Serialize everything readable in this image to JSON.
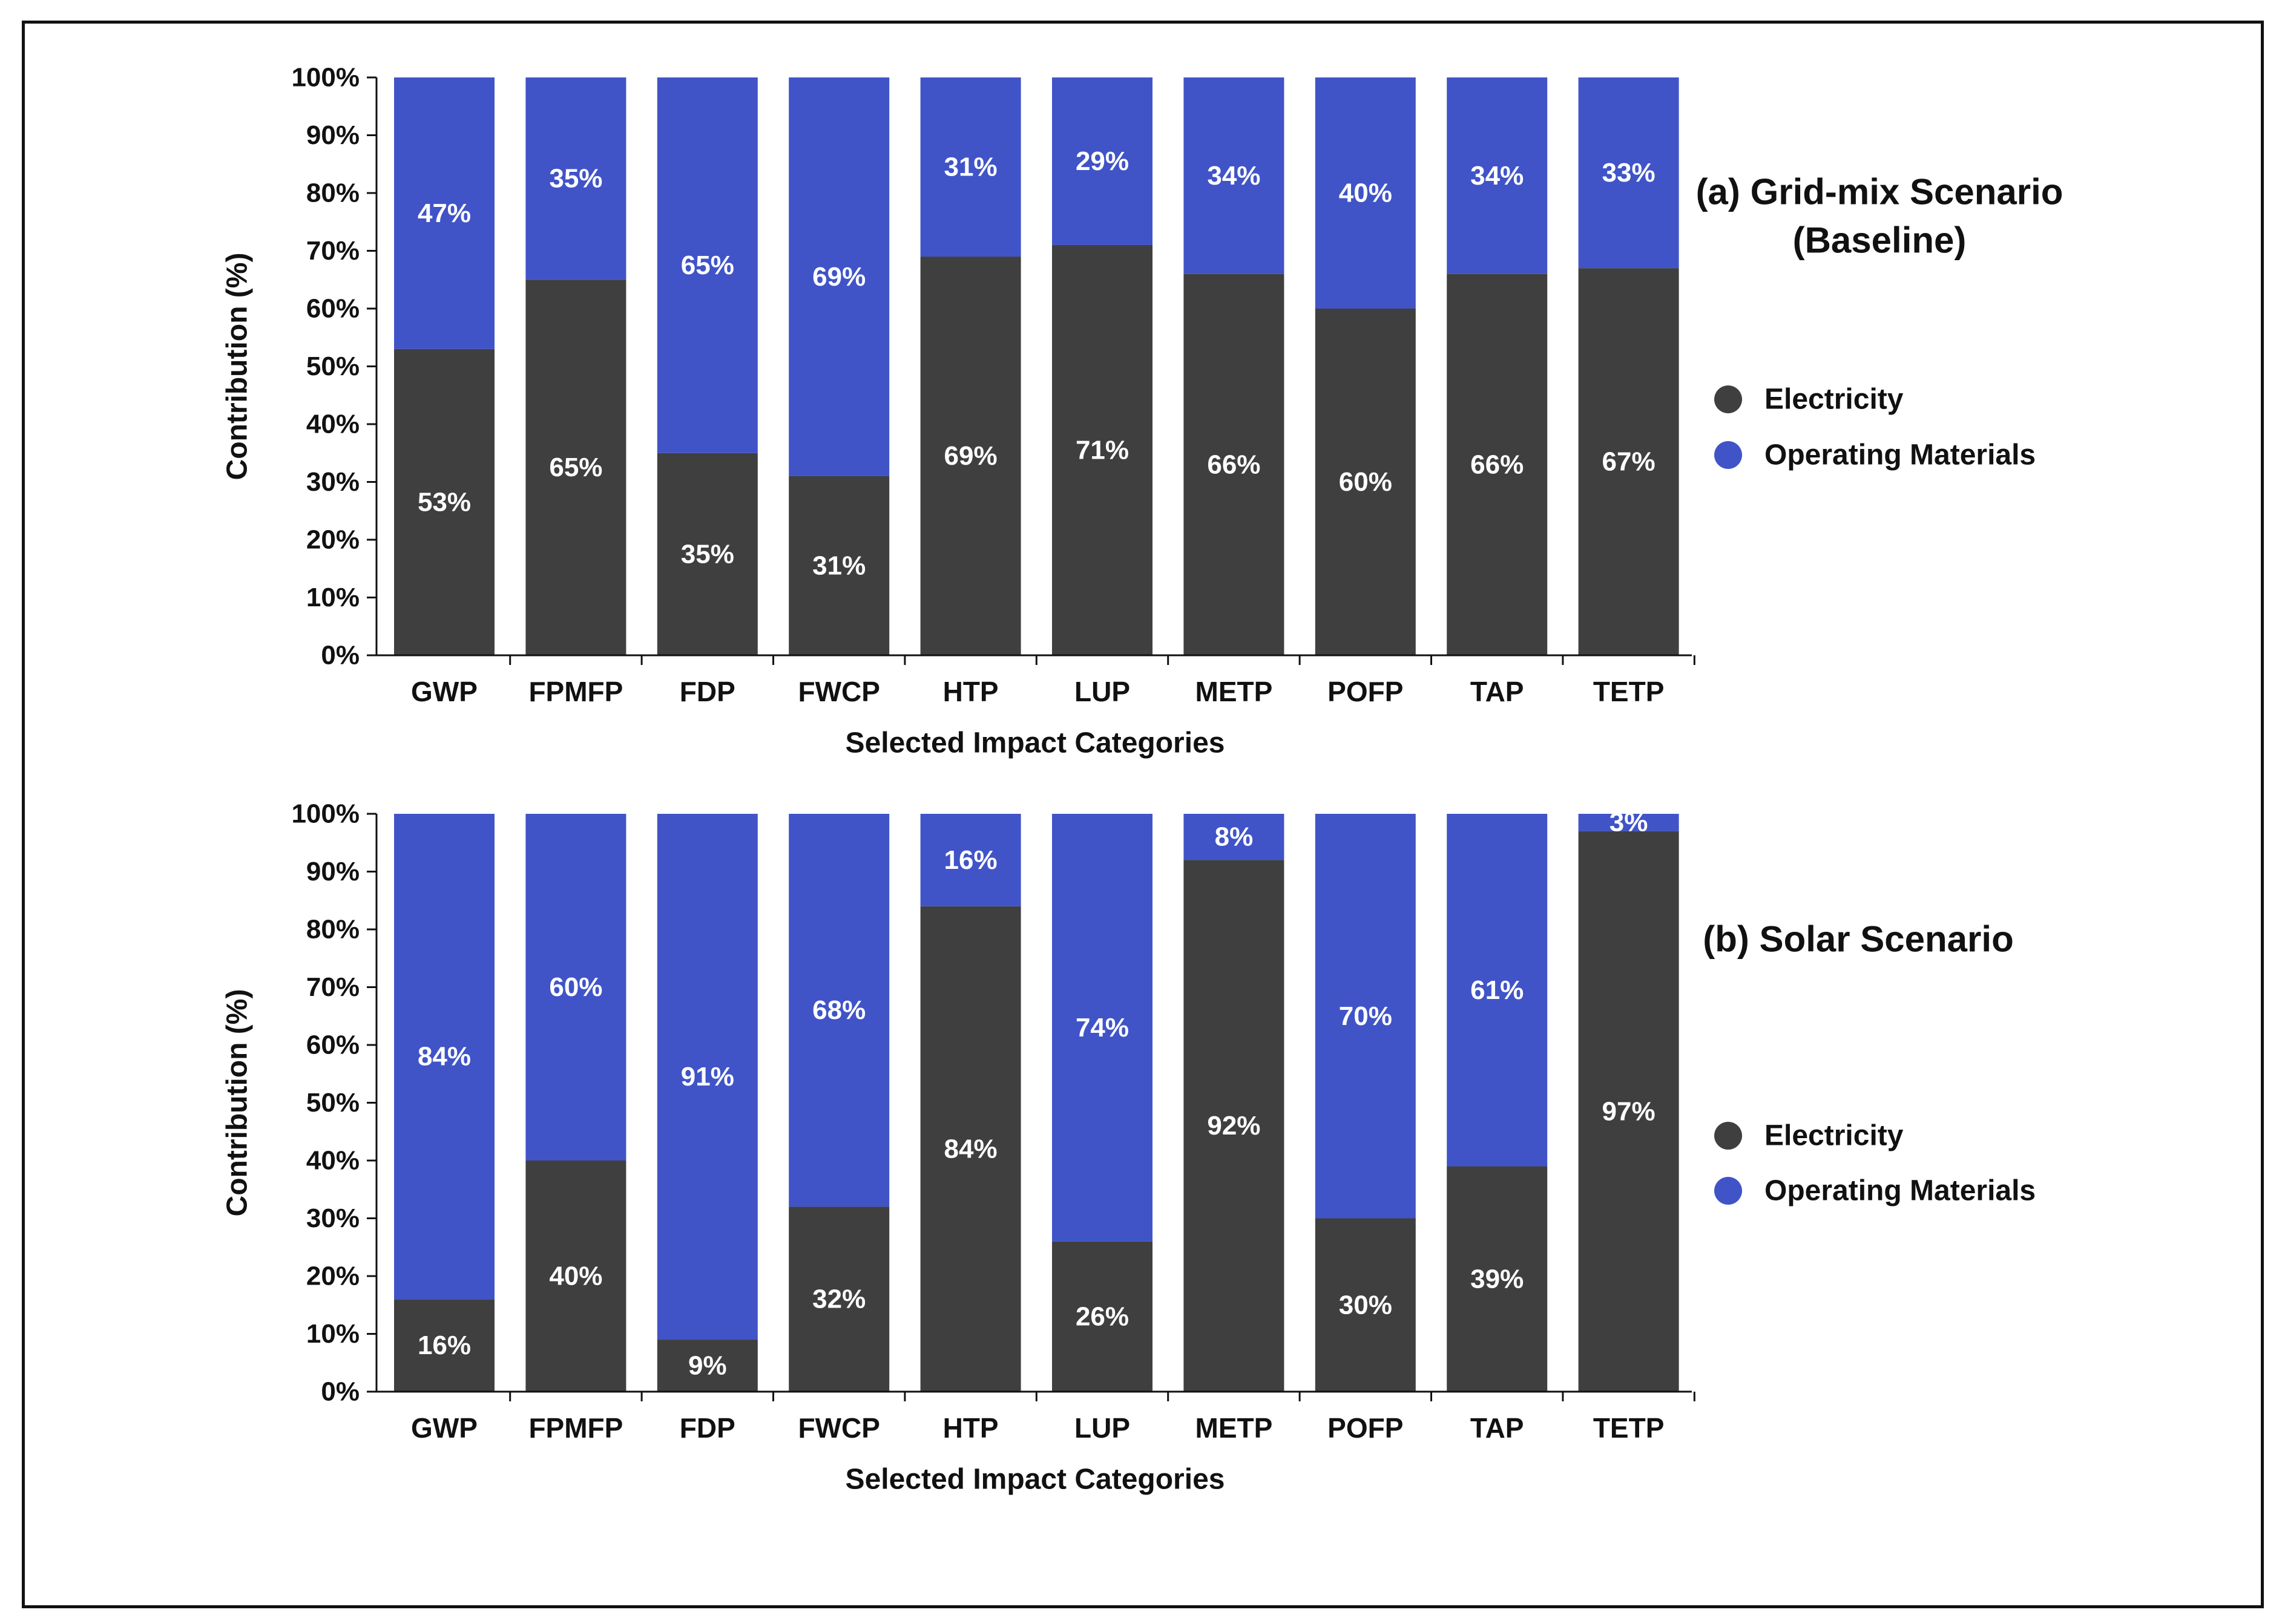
{
  "colors": {
    "electricity": "#3f3f3f",
    "operating_materials": "#4054c8",
    "axis": "#111111",
    "text": "#111111",
    "bar_label": "#ffffff"
  },
  "chart_data": [
    {
      "type": "bar",
      "stacked": true,
      "title": "(a) Grid-mix Scenario (Baseline)",
      "title_lines": [
        "(a) Grid-mix Scenario",
        "(Baseline)"
      ],
      "xlabel": "Selected Impact Categories",
      "ylabel": "Contribution (%)",
      "ylim": [
        0,
        100
      ],
      "yticks": [
        "0%",
        "10%",
        "20%",
        "30%",
        "40%",
        "50%",
        "60%",
        "70%",
        "80%",
        "90%",
        "100%"
      ],
      "categories": [
        "GWP",
        "FPMFP",
        "FDP",
        "FWCP",
        "HTP",
        "LUP",
        "METP",
        "POFP",
        "TAP",
        "TETP"
      ],
      "legend_position": "right",
      "series": [
        {
          "name": "Electricity",
          "values": [
            53,
            65,
            35,
            31,
            69,
            71,
            66,
            60,
            66,
            67
          ],
          "labels": [
            "53%",
            "65%",
            "35%",
            "31%",
            "69%",
            "71%",
            "66%",
            "60%",
            "66%",
            "67%"
          ]
        },
        {
          "name": "Operating Materials",
          "values": [
            47,
            35,
            65,
            69,
            31,
            29,
            34,
            40,
            34,
            33
          ],
          "labels": [
            "47%",
            "35%",
            "65%",
            "69%",
            "31%",
            "29%",
            "34%",
            "40%",
            "34%",
            "33%"
          ]
        }
      ]
    },
    {
      "type": "bar",
      "stacked": true,
      "title": "(b) Solar Scenario",
      "title_lines": [
        "(b) Solar Scenario"
      ],
      "xlabel": "Selected Impact Categories",
      "ylabel": "Contribution (%)",
      "ylim": [
        0,
        100
      ],
      "yticks": [
        "0%",
        "10%",
        "20%",
        "30%",
        "40%",
        "50%",
        "60%",
        "70%",
        "80%",
        "90%",
        "100%"
      ],
      "categories": [
        "GWP",
        "FPMFP",
        "FDP",
        "FWCP",
        "HTP",
        "LUP",
        "METP",
        "POFP",
        "TAP",
        "TETP"
      ],
      "legend_position": "right",
      "series": [
        {
          "name": "Electricity",
          "values": [
            16,
            40,
            9,
            32,
            84,
            26,
            92,
            30,
            39,
            97
          ],
          "labels": [
            "16%",
            "40%",
            "9%",
            "32%",
            "84%",
            "26%",
            "92%",
            "30%",
            "39%",
            "97%"
          ]
        },
        {
          "name": "Operating Materials",
          "values": [
            84,
            60,
            91,
            68,
            16,
            74,
            8,
            70,
            61,
            3
          ],
          "labels": [
            "84%",
            "60%",
            "91%",
            "68%",
            "16%",
            "74%",
            "8%",
            "70%",
            "61%",
            "3%"
          ]
        }
      ]
    }
  ]
}
